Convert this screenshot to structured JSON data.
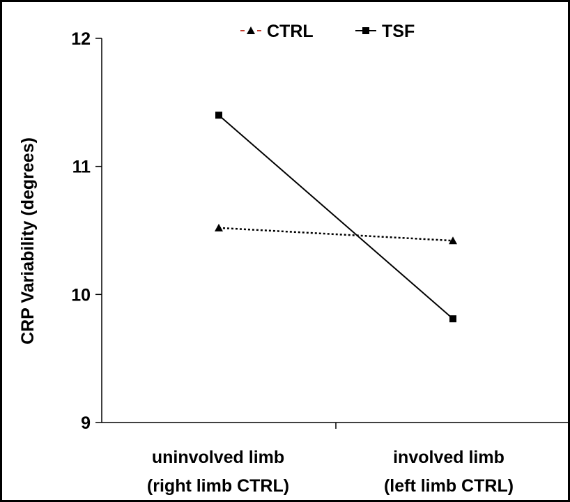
{
  "chart_data": {
    "type": "line",
    "categories": [
      [
        "uninvolved limb",
        "(right limb CTRL)"
      ],
      [
        "involved limb",
        "(left limb CTRL)"
      ]
    ],
    "ylabel": "CRP Variability (degrees)",
    "ylim": [
      9,
      12
    ],
    "yticks": [
      "9",
      "10",
      "11",
      "12"
    ],
    "legend_position": "top-center",
    "grid": false,
    "series": [
      {
        "name": "CTRL",
        "values": [
          10.52,
          10.42
        ],
        "style": "dotted",
        "marker": "triangle",
        "color": "#000000"
      },
      {
        "name": "TSF",
        "values": [
          11.4,
          9.81
        ],
        "style": "solid",
        "marker": "square",
        "color": "#000000"
      }
    ]
  }
}
